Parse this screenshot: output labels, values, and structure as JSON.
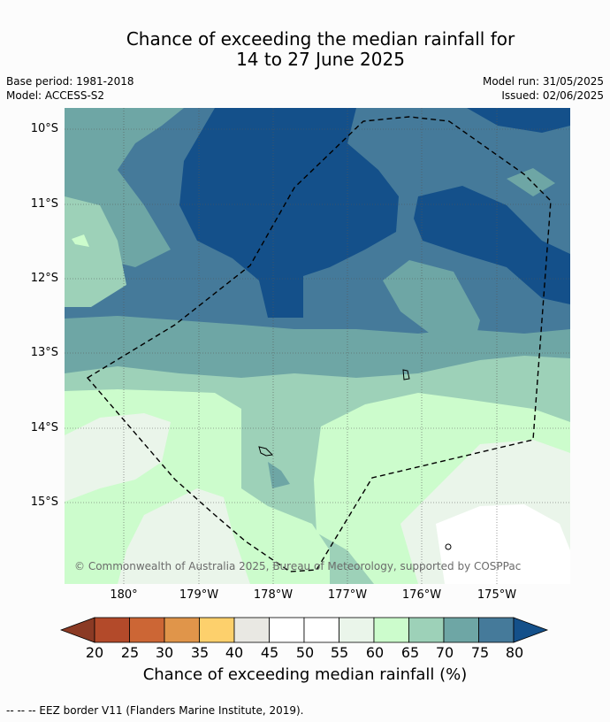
{
  "title_line1": "Chance of exceeding the median rainfall for",
  "title_line2": "14 to 27 June 2025",
  "meta": {
    "base_period": "Base period: 1981-2018",
    "model": "Model: ACCESS-S2",
    "model_run": "Model run: 31/05/2025",
    "issued": "Issued: 02/06/2025"
  },
  "lat_labels": [
    "10°S",
    "11°S",
    "12°S",
    "13°S",
    "14°S",
    "15°S"
  ],
  "lon_labels": [
    "180°",
    "179°W",
    "178°W",
    "177°W",
    "176°W",
    "175°W"
  ],
  "copyright": "© Commonwealth of Australia 2025, Bureau of Meteorology, supported by COSPPac",
  "colorbar": {
    "ticks": [
      "20",
      "25",
      "30",
      "35",
      "40",
      "45",
      "50",
      "55",
      "60",
      "65",
      "70",
      "75",
      "80"
    ],
    "colors": [
      "#8b3a24",
      "#b34a2a",
      "#cc6635",
      "#e0954a",
      "#fdd06c",
      "#e9e8e3",
      "#ffffff",
      "#ffffff",
      "#eaf5ea",
      "#ccfccc",
      "#9dd1b8",
      "#6ea6a5",
      "#457a9a",
      "#14508a"
    ],
    "label": "Chance of exceeding median rainfall (%)"
  },
  "footer": "--  --  -- EEZ border V11 (Flanders Marine Institute, 2019)."
}
